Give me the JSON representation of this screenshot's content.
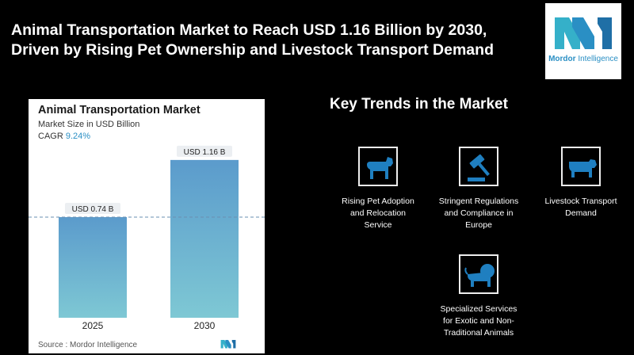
{
  "headline": {
    "line1": "Animal Transportation Market to Reach USD 1.16 Billion by 2030,",
    "line2": "Driven by Rising Pet Ownership and Livestock Transport Demand"
  },
  "logo": {
    "brand_first": "Mordor",
    "brand_second": "Intelligence"
  },
  "chart_data": {
    "type": "bar",
    "title": "Animal Transportation Market",
    "subtitle": "Market Size in USD Billion",
    "cagr_label": "CAGR",
    "cagr_value": "9.24%",
    "categories": [
      "2025",
      "2030"
    ],
    "values": [
      0.74,
      1.16
    ],
    "data_labels": [
      "USD 0.74 B",
      "USD 1.16 B"
    ],
    "ylim": [
      0,
      1.2
    ],
    "bar_color_top": "#5b9bcc",
    "bar_color_bottom": "#7ec8d4",
    "reference_line": "dashed at first bar value",
    "source": "Source : Mordor Intelligence"
  },
  "trends": {
    "title": "Key Trends in the Market",
    "items": [
      {
        "icon": "dog-icon",
        "lines": [
          "Rising Pet Adoption",
          "and Relocation",
          "Service"
        ]
      },
      {
        "icon": "gavel-icon",
        "lines": [
          "Stringent Regulations",
          "and Compliance in",
          "Europe"
        ]
      },
      {
        "icon": "cow-icon",
        "lines": [
          "Livestock Transport",
          "Demand"
        ]
      },
      {
        "icon": "lion-icon",
        "lines": [
          "Specialized Services",
          "for Exotic and Non-",
          "Traditional Animals"
        ]
      }
    ]
  },
  "colors": {
    "accent": "#2a8fc4",
    "icon_fill": "#1f7fc0",
    "background": "#000000"
  }
}
